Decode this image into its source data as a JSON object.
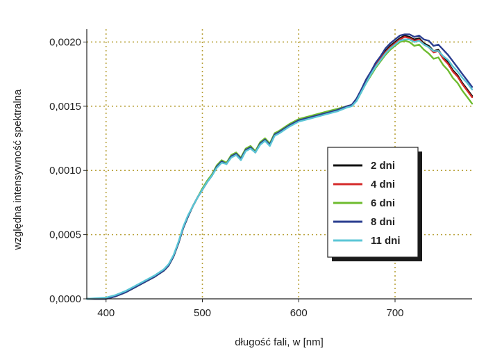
{
  "chart_data": {
    "type": "line",
    "title": "",
    "xlabel": "długość fali, w [nm]",
    "ylabel": "względna intensywność spektralna",
    "xlim": [
      380,
      780
    ],
    "ylim": [
      0,
      0.0021
    ],
    "x_ticks": [
      400,
      500,
      600,
      700
    ],
    "x_tick_labels": [
      "400",
      "500",
      "600",
      "700"
    ],
    "y_ticks": [
      0,
      0.0005,
      0.001,
      0.0015,
      0.002
    ],
    "y_tick_labels": [
      "0,0000",
      "0,0005",
      "0,0010",
      "0,0015",
      "0,0020"
    ],
    "grid": "dotted",
    "grid_color": "#b8a13a",
    "legend_position": "right",
    "x": [
      380,
      400,
      410,
      420,
      430,
      440,
      450,
      460,
      465,
      470,
      475,
      480,
      485,
      490,
      495,
      500,
      505,
      510,
      515,
      520,
      525,
      530,
      535,
      540,
      545,
      550,
      555,
      560,
      565,
      570,
      575,
      580,
      590,
      600,
      610,
      620,
      630,
      640,
      650,
      655,
      660,
      665,
      670,
      675,
      680,
      685,
      690,
      695,
      700,
      705,
      710,
      715,
      720,
      725,
      730,
      735,
      740,
      745,
      750,
      755,
      760,
      765,
      770,
      775,
      780
    ],
    "series": [
      {
        "name": "2 dni",
        "color": "#111111",
        "values": [
          0,
          0,
          2e-05,
          5e-05,
          9e-05,
          0.00013,
          0.00017,
          0.00022,
          0.00026,
          0.00033,
          0.00043,
          0.00055,
          0.00064,
          0.00072,
          0.00079,
          0.00085,
          0.00091,
          0.00096,
          0.00103,
          0.00107,
          0.00105,
          0.00111,
          0.00113,
          0.00109,
          0.00116,
          0.00118,
          0.00114,
          0.00121,
          0.00124,
          0.0012,
          0.00128,
          0.0013,
          0.00135,
          0.00139,
          0.00141,
          0.00143,
          0.00145,
          0.00147,
          0.0015,
          0.00151,
          0.00155,
          0.00162,
          0.0017,
          0.00176,
          0.00182,
          0.00187,
          0.00193,
          0.00197,
          0.002,
          0.00203,
          0.00205,
          0.00204,
          0.00202,
          0.00203,
          0.00199,
          0.00197,
          0.00193,
          0.00194,
          0.00188,
          0.00184,
          0.00178,
          0.00174,
          0.00168,
          0.00163,
          0.00158
        ]
      },
      {
        "name": "4 dni",
        "color": "#d42a2a",
        "values": [
          0,
          0,
          2e-05,
          5e-05,
          9e-05,
          0.00013,
          0.00017,
          0.00022,
          0.00026,
          0.00033,
          0.00043,
          0.00055,
          0.00064,
          0.00072,
          0.00079,
          0.00085,
          0.00091,
          0.00097,
          0.00103,
          0.00107,
          0.00106,
          0.00111,
          0.00113,
          0.00109,
          0.00116,
          0.00118,
          0.00115,
          0.00121,
          0.00124,
          0.0012,
          0.00128,
          0.0013,
          0.00135,
          0.00139,
          0.00141,
          0.00143,
          0.00145,
          0.00147,
          0.0015,
          0.00151,
          0.00155,
          0.00162,
          0.0017,
          0.00176,
          0.00182,
          0.00187,
          0.00192,
          0.00196,
          0.00199,
          0.00202,
          0.00204,
          0.00203,
          0.00201,
          0.00202,
          0.00198,
          0.00196,
          0.00192,
          0.00193,
          0.00187,
          0.00183,
          0.00177,
          0.00173,
          0.00167,
          0.00162,
          0.00157
        ]
      },
      {
        "name": "6 dni",
        "color": "#6dbb2e",
        "values": [
          0,
          0,
          2e-05,
          5e-05,
          9e-05,
          0.00013,
          0.00017,
          0.00022,
          0.00026,
          0.00033,
          0.00043,
          0.00055,
          0.00064,
          0.00072,
          0.00079,
          0.00086,
          0.00092,
          0.00097,
          0.00104,
          0.00108,
          0.00106,
          0.00112,
          0.00114,
          0.0011,
          0.00117,
          0.00119,
          0.00115,
          0.00122,
          0.00125,
          0.00121,
          0.00129,
          0.00131,
          0.00136,
          0.0014,
          0.00142,
          0.00144,
          0.00146,
          0.00148,
          0.0015,
          0.00151,
          0.00154,
          0.00161,
          0.00168,
          0.00174,
          0.0018,
          0.00185,
          0.0019,
          0.00194,
          0.00197,
          0.002,
          0.00201,
          0.002,
          0.00197,
          0.00198,
          0.00194,
          0.00191,
          0.00187,
          0.00188,
          0.00182,
          0.00178,
          0.00172,
          0.00168,
          0.00162,
          0.00157,
          0.00152
        ]
      },
      {
        "name": "8 dni",
        "color": "#2a3d8f",
        "values": [
          0,
          0,
          2e-05,
          5e-05,
          9e-05,
          0.00013,
          0.00017,
          0.00022,
          0.00026,
          0.00033,
          0.00043,
          0.00055,
          0.00064,
          0.00072,
          0.00079,
          0.00085,
          0.00091,
          0.00096,
          0.00103,
          0.00107,
          0.00105,
          0.00111,
          0.00113,
          0.00109,
          0.00116,
          0.00118,
          0.00114,
          0.00121,
          0.00124,
          0.0012,
          0.00128,
          0.0013,
          0.00135,
          0.00139,
          0.00141,
          0.00143,
          0.00145,
          0.00147,
          0.0015,
          0.00151,
          0.00156,
          0.00163,
          0.00171,
          0.00177,
          0.00184,
          0.00189,
          0.00195,
          0.00199,
          0.00202,
          0.00205,
          0.00206,
          0.00206,
          0.00204,
          0.00205,
          0.00202,
          0.00201,
          0.00197,
          0.00198,
          0.00194,
          0.0019,
          0.00185,
          0.0018,
          0.00175,
          0.0017,
          0.00165
        ]
      },
      {
        "name": "11 dni",
        "color": "#5cc6d6",
        "values": [
          0,
          1e-05,
          3e-05,
          6e-05,
          0.0001,
          0.00014,
          0.00018,
          0.00023,
          0.00027,
          0.00034,
          0.00044,
          0.00056,
          0.00065,
          0.00072,
          0.00079,
          0.00085,
          0.00091,
          0.00096,
          0.00102,
          0.00106,
          0.00105,
          0.0011,
          0.00112,
          0.00108,
          0.00115,
          0.00117,
          0.00114,
          0.0012,
          0.00123,
          0.00119,
          0.00127,
          0.00129,
          0.00134,
          0.00138,
          0.0014,
          0.00142,
          0.00144,
          0.00146,
          0.00149,
          0.0015,
          0.00154,
          0.00161,
          0.00168,
          0.00175,
          0.00181,
          0.00186,
          0.00191,
          0.00195,
          0.00198,
          0.00201,
          0.00202,
          0.00202,
          0.002,
          0.00201,
          0.00198,
          0.00196,
          0.00193,
          0.00193,
          0.00189,
          0.00186,
          0.00181,
          0.00177,
          0.00172,
          0.00168,
          0.00163
        ]
      }
    ]
  }
}
